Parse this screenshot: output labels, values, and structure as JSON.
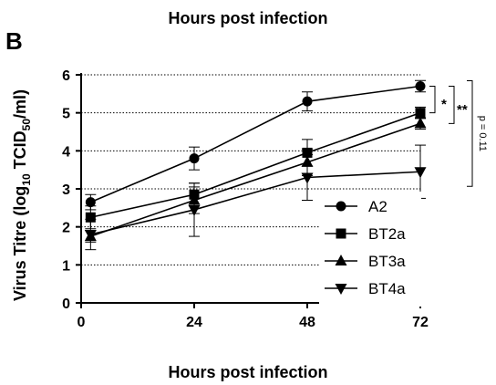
{
  "figure": {
    "top_title": "Hours post infection",
    "panel_letter": "B"
  },
  "chart_data": {
    "type": "line",
    "title": "Hours post infection",
    "xlabel": "Hours post infection",
    "ylabel_main": "Virus Titre (log",
    "ylabel_sub1": "10",
    "ylabel_mid": " TCID",
    "ylabel_sub2": "50",
    "ylabel_end": "/ml)",
    "x": [
      2,
      24,
      48,
      72
    ],
    "xticks": [
      0,
      24,
      48,
      72
    ],
    "xlim": [
      0,
      72
    ],
    "ylim": [
      0,
      6
    ],
    "yticks": [
      0,
      1,
      2,
      3,
      4,
      5,
      6
    ],
    "grid": "horizontal dotted",
    "legend": "bottom-right",
    "series": [
      {
        "name": "A2",
        "marker": "circle",
        "values": [
          2.65,
          3.8,
          5.3,
          5.7
        ],
        "errors": [
          0.2,
          0.3,
          0.25,
          0.15
        ]
      },
      {
        "name": "BT2a",
        "marker": "square",
        "values": [
          2.25,
          2.85,
          3.95,
          5.0
        ],
        "errors": [
          0.3,
          0.3,
          0.35,
          0.15
        ]
      },
      {
        "name": "BT3a",
        "marker": "triangle-up",
        "values": [
          1.75,
          2.7,
          3.7,
          4.72
        ],
        "errors": [
          0.15,
          0.35,
          0.35,
          0.15
        ]
      },
      {
        "name": "BT4a",
        "marker": "triangle-down",
        "values": [
          1.8,
          2.45,
          3.3,
          3.45
        ],
        "errors": [
          0.4,
          0.7,
          0.6,
          0.7
        ]
      }
    ],
    "annotations": [
      {
        "text": "*"
      },
      {
        "text": "**"
      },
      {
        "text": "p = 0.11"
      }
    ]
  }
}
